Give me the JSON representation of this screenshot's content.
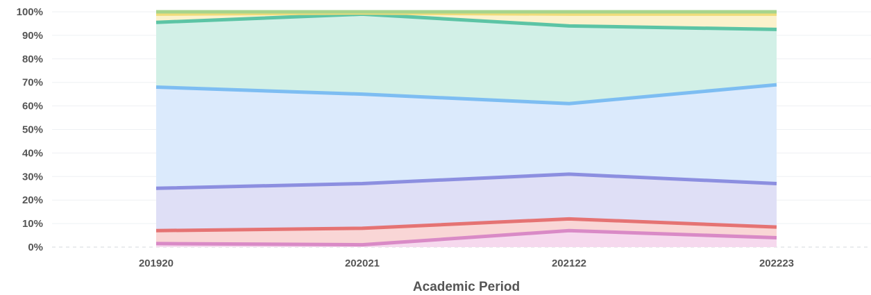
{
  "chart_data": {
    "type": "area",
    "stacked": true,
    "normalized": true,
    "title": "",
    "xlabel": "Academic Period",
    "ylabel": "",
    "categories": [
      "201920",
      "202021",
      "202122",
      "202223"
    ],
    "ylim": [
      0,
      100
    ],
    "y_ticks": [
      0,
      10,
      20,
      30,
      40,
      50,
      60,
      70,
      80,
      90,
      100
    ],
    "y_tick_labels": [
      "0%",
      "10%",
      "20%",
      "30%",
      "40%",
      "50%",
      "60%",
      "70%",
      "80%",
      "90%",
      "100%"
    ],
    "grid": true,
    "legend": "none",
    "series": [
      {
        "line_color": "#d98ac6",
        "fill_color": "#f6d9ee",
        "values": [
          1.5,
          1.0,
          7.0,
          4.0
        ]
      },
      {
        "line_color": "#e57373",
        "fill_color": "#f9d6d6",
        "values": [
          5.5,
          7.0,
          5.0,
          4.5
        ]
      },
      {
        "line_color": "#8c8fe0",
        "fill_color": "#dfdff6",
        "values": [
          18.0,
          19.0,
          19.0,
          18.5
        ]
      },
      {
        "line_color": "#7dbdf2",
        "fill_color": "#dbeafc",
        "values": [
          43.0,
          38.0,
          30.0,
          42.0
        ]
      },
      {
        "line_color": "#5cc4a5",
        "fill_color": "#d2f0e7",
        "values": [
          27.5,
          34.0,
          33.0,
          23.5
        ]
      },
      {
        "line_color": "#f0dc7a",
        "fill_color": "#fbf2cc",
        "values": [
          3.5,
          0.5,
          5.0,
          6.5
        ]
      },
      {
        "line_color": "#a7d48c",
        "fill_color": "#e1f1d6",
        "values": [
          1.0,
          0.5,
          1.0,
          1.0
        ]
      }
    ]
  }
}
